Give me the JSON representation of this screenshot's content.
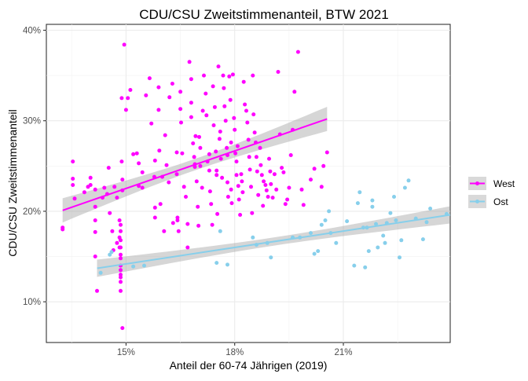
{
  "chart_data": {
    "type": "scatter",
    "title": "CDU/CSU Zweitstimmenanteil, BTW 2021",
    "xlabel": "Anteil der 60-74 Jährigen (2019)",
    "ylabel": "CDU/CSU Zweitstimmenanteil",
    "xlim": [
      0.128,
      0.2395
    ],
    "ylim": [
      0.055,
      0.4065
    ],
    "x_ticks": [
      0.15,
      0.18,
      0.21
    ],
    "x_tick_labels": [
      "15%",
      "18%",
      "21%"
    ],
    "y_ticks": [
      0.1,
      0.2,
      0.3,
      0.4
    ],
    "y_tick_labels": [
      "10%",
      "20%",
      "30%",
      "40%"
    ],
    "grid": true,
    "legend_position": "right",
    "series": [
      {
        "name": "West",
        "color": "#ff00ff",
        "trend": {
          "x0": 0.1325,
          "y0": 0.201,
          "x1": 0.2055,
          "y1": 0.302,
          "se": 0.014
        },
        "points": [
          [
            0.1325,
            0.18
          ],
          [
            0.1325,
            0.182
          ],
          [
            0.1353,
            0.255
          ],
          [
            0.1353,
            0.236
          ],
          [
            0.1353,
            0.229
          ],
          [
            0.1358,
            0.214
          ],
          [
            0.1385,
            0.221
          ],
          [
            0.1395,
            0.227
          ],
          [
            0.1402,
            0.237
          ],
          [
            0.1402,
            0.229
          ],
          [
            0.1415,
            0.224
          ],
          [
            0.1415,
            0.205
          ],
          [
            0.1415,
            0.19
          ],
          [
            0.1415,
            0.177
          ],
          [
            0.1415,
            0.15
          ],
          [
            0.142,
            0.112
          ],
          [
            0.1435,
            0.215
          ],
          [
            0.144,
            0.226
          ],
          [
            0.1448,
            0.219
          ],
          [
            0.1452,
            0.248
          ],
          [
            0.1455,
            0.198
          ],
          [
            0.1462,
            0.178
          ],
          [
            0.1465,
            0.157
          ],
          [
            0.1468,
            0.227
          ],
          [
            0.1475,
            0.215
          ],
          [
            0.1475,
            0.165
          ],
          [
            0.1482,
            0.19
          ],
          [
            0.1482,
            0.171
          ],
          [
            0.1482,
            0.16
          ],
          [
            0.1485,
            0.14
          ],
          [
            0.1485,
            0.13
          ],
          [
            0.1485,
            0.112
          ],
          [
            0.1485,
            0.122
          ],
          [
            0.1485,
            0.127
          ],
          [
            0.1485,
            0.135
          ],
          [
            0.1485,
            0.148
          ],
          [
            0.1485,
            0.152
          ],
          [
            0.1485,
            0.16
          ],
          [
            0.1485,
            0.168
          ],
          [
            0.1485,
            0.178
          ],
          [
            0.1485,
            0.185
          ],
          [
            0.1488,
            0.325
          ],
          [
            0.1488,
            0.255
          ],
          [
            0.149,
            0.235
          ],
          [
            0.149,
            0.223
          ],
          [
            0.149,
            0.071
          ],
          [
            0.1495,
            0.384
          ],
          [
            0.15,
            0.312
          ],
          [
            0.1505,
            0.325
          ],
          [
            0.1512,
            0.334
          ],
          [
            0.152,
            0.263
          ],
          [
            0.153,
            0.264
          ],
          [
            0.1535,
            0.253
          ],
          [
            0.1535,
            0.228
          ],
          [
            0.1545,
            0.243
          ],
          [
            0.1545,
            0.226
          ],
          [
            0.1555,
            0.328
          ],
          [
            0.1565,
            0.347
          ],
          [
            0.157,
            0.297
          ],
          [
            0.1578,
            0.238
          ],
          [
            0.158,
            0.256
          ],
          [
            0.158,
            0.204
          ],
          [
            0.158,
            0.193
          ],
          [
            0.159,
            0.337
          ],
          [
            0.159,
            0.312
          ],
          [
            0.1592,
            0.267
          ],
          [
            0.1595,
            0.208
          ],
          [
            0.16,
            0.238
          ],
          [
            0.1605,
            0.178
          ],
          [
            0.1608,
            0.284
          ],
          [
            0.1612,
            0.251
          ],
          [
            0.1618,
            0.232
          ],
          [
            0.162,
            0.326
          ],
          [
            0.1628,
            0.341
          ],
          [
            0.163,
            0.187
          ],
          [
            0.164,
            0.265
          ],
          [
            0.164,
            0.241
          ],
          [
            0.1642,
            0.193
          ],
          [
            0.1642,
            0.19
          ],
          [
            0.1645,
            0.178
          ],
          [
            0.165,
            0.332
          ],
          [
            0.165,
            0.313
          ],
          [
            0.1652,
            0.298
          ],
          [
            0.1655,
            0.264
          ],
          [
            0.166,
            0.227
          ],
          [
            0.1665,
            0.216
          ],
          [
            0.167,
            0.186
          ],
          [
            0.167,
            0.16
          ],
          [
            0.1675,
            0.365
          ],
          [
            0.168,
            0.346
          ],
          [
            0.168,
            0.32
          ],
          [
            0.168,
            0.304
          ],
          [
            0.1685,
            0.275
          ],
          [
            0.1688,
            0.26
          ],
          [
            0.169,
            0.252
          ],
          [
            0.169,
            0.249
          ],
          [
            0.1692,
            0.283
          ],
          [
            0.1695,
            0.233
          ],
          [
            0.1698,
            0.205
          ],
          [
            0.17,
            0.184
          ],
          [
            0.1702,
            0.282
          ],
          [
            0.1705,
            0.27
          ],
          [
            0.1705,
            0.25
          ],
          [
            0.171,
            0.226
          ],
          [
            0.1712,
            0.311
          ],
          [
            0.1715,
            0.35
          ],
          [
            0.172,
            0.33
          ],
          [
            0.1722,
            0.306
          ],
          [
            0.1725,
            0.255
          ],
          [
            0.173,
            0.263
          ],
          [
            0.173,
            0.245
          ],
          [
            0.1732,
            0.222
          ],
          [
            0.1735,
            0.208
          ],
          [
            0.1738,
            0.185
          ],
          [
            0.174,
            0.338
          ],
          [
            0.1742,
            0.295
          ],
          [
            0.1745,
            0.315
          ],
          [
            0.1748,
            0.266
          ],
          [
            0.175,
            0.245
          ],
          [
            0.175,
            0.24
          ],
          [
            0.1752,
            0.197
          ],
          [
            0.1755,
            0.36
          ],
          [
            0.1758,
            0.28
          ],
          [
            0.176,
            0.288
          ],
          [
            0.1762,
            0.258
          ],
          [
            0.1765,
            0.237
          ],
          [
            0.1768,
            0.35
          ],
          [
            0.177,
            0.336
          ],
          [
            0.1772,
            0.316
          ],
          [
            0.1775,
            0.3
          ],
          [
            0.1778,
            0.27
          ],
          [
            0.178,
            0.262
          ],
          [
            0.178,
            0.232
          ],
          [
            0.1782,
            0.216
          ],
          [
            0.1785,
            0.349
          ],
          [
            0.1788,
            0.323
          ],
          [
            0.179,
            0.276
          ],
          [
            0.179,
            0.224
          ],
          [
            0.1792,
            0.209
          ],
          [
            0.1795,
            0.351
          ],
          [
            0.1798,
            0.303
          ],
          [
            0.18,
            0.29
          ],
          [
            0.1802,
            0.264
          ],
          [
            0.1805,
            0.255
          ],
          [
            0.1805,
            0.24
          ],
          [
            0.1808,
            0.272
          ],
          [
            0.181,
            0.228
          ],
          [
            0.1812,
            0.213
          ],
          [
            0.1815,
            0.196
          ],
          [
            0.1818,
            0.241
          ],
          [
            0.182,
            0.233
          ],
          [
            0.1822,
            0.221
          ],
          [
            0.1825,
            0.343
          ],
          [
            0.1828,
            0.318
          ],
          [
            0.1832,
            0.311
          ],
          [
            0.1835,
            0.298
          ],
          [
            0.1838,
            0.279
          ],
          [
            0.184,
            0.26
          ],
          [
            0.1842,
            0.246
          ],
          [
            0.1845,
            0.227
          ],
          [
            0.1848,
            0.198
          ],
          [
            0.185,
            0.35
          ],
          [
            0.1852,
            0.307
          ],
          [
            0.1855,
            0.287
          ],
          [
            0.1858,
            0.276
          ],
          [
            0.186,
            0.26
          ],
          [
            0.1862,
            0.244
          ],
          [
            0.1865,
            0.218
          ],
          [
            0.187,
            0.27
          ],
          [
            0.1872,
            0.251
          ],
          [
            0.1875,
            0.24
          ],
          [
            0.1878,
            0.206
          ],
          [
            0.188,
            0.233
          ],
          [
            0.1885,
            0.229
          ],
          [
            0.1888,
            0.223
          ],
          [
            0.1892,
            0.216
          ],
          [
            0.1895,
            0.258
          ],
          [
            0.1898,
            0.244
          ],
          [
            0.19,
            0.23
          ],
          [
            0.1905,
            0.215
          ],
          [
            0.191,
            0.241
          ],
          [
            0.1915,
            0.224
          ],
          [
            0.192,
            0.354
          ],
          [
            0.1925,
            0.285
          ],
          [
            0.193,
            0.248
          ],
          [
            0.1935,
            0.243
          ],
          [
            0.194,
            0.208
          ],
          [
            0.1945,
            0.213
          ],
          [
            0.195,
            0.226
          ],
          [
            0.1955,
            0.262
          ],
          [
            0.196,
            0.29
          ],
          [
            0.1965,
            0.332
          ],
          [
            0.1975,
            0.376
          ],
          [
            0.1985,
            0.224
          ],
          [
            0.199,
            0.207
          ],
          [
            0.201,
            0.235
          ],
          [
            0.202,
            0.247
          ],
          [
            0.204,
            0.227
          ],
          [
            0.2045,
            0.25
          ],
          [
            0.2055,
            0.265
          ]
        ]
      },
      {
        "name": "Ost",
        "color": "#87cfeb",
        "trend": {
          "x0": 0.142,
          "y0": 0.137,
          "x1": 0.2395,
          "y1": 0.196,
          "se": 0.01
        },
        "points": [
          [
            0.143,
            0.132
          ],
          [
            0.1455,
            0.152
          ],
          [
            0.146,
            0.155
          ],
          [
            0.152,
            0.139
          ],
          [
            0.155,
            0.14
          ],
          [
            0.175,
            0.143
          ],
          [
            0.176,
            0.178
          ],
          [
            0.178,
            0.141
          ],
          [
            0.185,
            0.171
          ],
          [
            0.186,
            0.163
          ],
          [
            0.189,
            0.165
          ],
          [
            0.19,
            0.149
          ],
          [
            0.196,
            0.171
          ],
          [
            0.198,
            0.171
          ],
          [
            0.201,
            0.176
          ],
          [
            0.202,
            0.153
          ],
          [
            0.203,
            0.156
          ],
          [
            0.204,
            0.185
          ],
          [
            0.205,
            0.19
          ],
          [
            0.206,
            0.2
          ],
          [
            0.2065,
            0.176
          ],
          [
            0.208,
            0.165
          ],
          [
            0.211,
            0.189
          ],
          [
            0.213,
            0.14
          ],
          [
            0.214,
            0.209
          ],
          [
            0.2145,
            0.221
          ],
          [
            0.2155,
            0.182
          ],
          [
            0.216,
            0.138
          ],
          [
            0.2165,
            0.182
          ],
          [
            0.217,
            0.156
          ],
          [
            0.218,
            0.212
          ],
          [
            0.218,
            0.205
          ],
          [
            0.219,
            0.186
          ],
          [
            0.2195,
            0.16
          ],
          [
            0.221,
            0.173
          ],
          [
            0.2215,
            0.165
          ],
          [
            0.222,
            0.187
          ],
          [
            0.223,
            0.198
          ],
          [
            0.224,
            0.216
          ],
          [
            0.2245,
            0.19
          ],
          [
            0.2255,
            0.149
          ],
          [
            0.226,
            0.168
          ],
          [
            0.227,
            0.226
          ],
          [
            0.228,
            0.234
          ],
          [
            0.23,
            0.192
          ],
          [
            0.232,
            0.169
          ],
          [
            0.233,
            0.188
          ],
          [
            0.234,
            0.203
          ],
          [
            0.2385,
            0.197
          ]
        ]
      }
    ]
  }
}
